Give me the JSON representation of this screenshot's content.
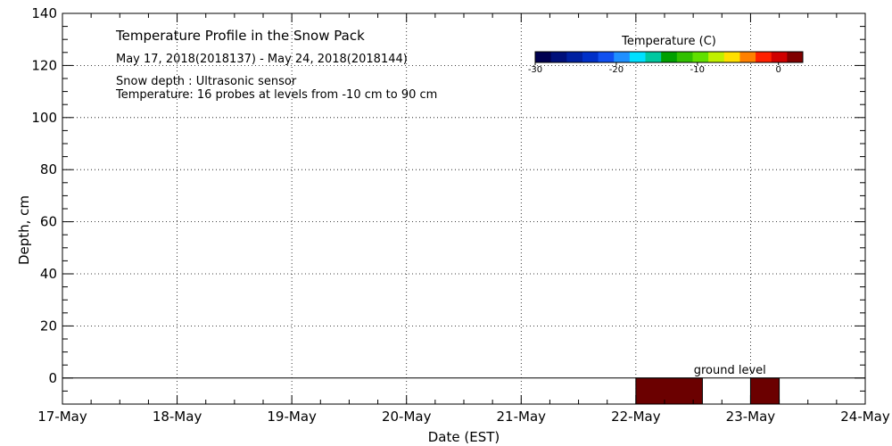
{
  "chart_data": {
    "type": "heatmap",
    "title": "Temperature Profile in the Snow Pack",
    "subtitle": "May 17, 2018(2018137) - May 24, 2018(2018144)",
    "notes": [
      "Snow depth : Ultrasonic sensor",
      "Temperature: 16 probes at levels from -10 cm to 90 cm"
    ],
    "xlabel": "Date (EST)",
    "ylabel": "Depth, cm",
    "x_ticks": [
      "17-May",
      "18-May",
      "19-May",
      "20-May",
      "21-May",
      "22-May",
      "23-May",
      "24-May"
    ],
    "xlim": [
      0,
      7
    ],
    "ylim": [
      -10,
      140
    ],
    "y_ticks": [
      0,
      20,
      40,
      60,
      80,
      100,
      120,
      140
    ],
    "grid": true,
    "colorbar": {
      "title": "Temperature (C)",
      "range": [
        -30,
        3
      ],
      "ticks": [
        -30,
        -20,
        -10,
        0
      ],
      "colors": [
        "#000050",
        "#00107a",
        "#0020a0",
        "#0030c8",
        "#1050f0",
        "#2090ff",
        "#00e0ff",
        "#00c8a0",
        "#00a000",
        "#30c000",
        "#60e000",
        "#c0f000",
        "#ffe000",
        "#ff8000",
        "#ff2000",
        "#d00000",
        "#800000"
      ]
    },
    "cells": [
      {
        "x_start": 5.0,
        "x_end": 5.58,
        "y_start": -10,
        "y_end": 0,
        "color": "#6b0000"
      },
      {
        "x_start": 6.0,
        "x_end": 6.25,
        "y_start": -10,
        "y_end": 0,
        "color": "#6b0000"
      }
    ],
    "ground_line": {
      "y": 0,
      "label": "ground level"
    }
  }
}
